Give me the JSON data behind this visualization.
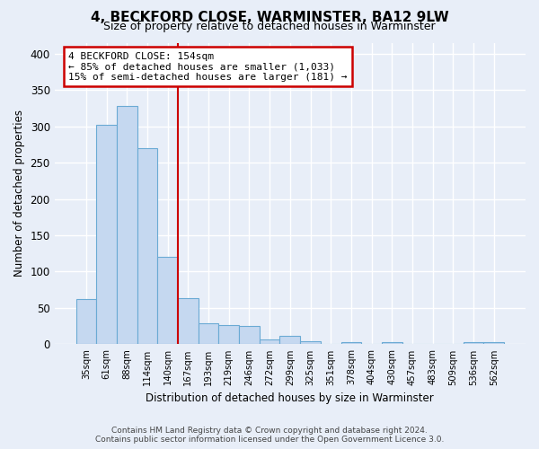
{
  "title": "4, BECKFORD CLOSE, WARMINSTER, BA12 9LW",
  "subtitle": "Size of property relative to detached houses in Warminster",
  "xlabel": "Distribution of detached houses by size in Warminster",
  "ylabel": "Number of detached properties",
  "categories": [
    "35sqm",
    "61sqm",
    "88sqm",
    "114sqm",
    "140sqm",
    "167sqm",
    "193sqm",
    "219sqm",
    "246sqm",
    "272sqm",
    "299sqm",
    "325sqm",
    "351sqm",
    "378sqm",
    "404sqm",
    "430sqm",
    "457sqm",
    "483sqm",
    "509sqm",
    "536sqm",
    "562sqm"
  ],
  "values": [
    62,
    302,
    328,
    270,
    120,
    63,
    29,
    27,
    25,
    7,
    12,
    4,
    0,
    3,
    0,
    3,
    0,
    0,
    0,
    3,
    3
  ],
  "bar_color": "#c5d8f0",
  "bar_edge_color": "#6aaad4",
  "property_line_x": 5,
  "annotation_text_line1": "4 BECKFORD CLOSE: 154sqm",
  "annotation_text_line2": "← 85% of detached houses are smaller (1,033)",
  "annotation_text_line3": "15% of semi-detached houses are larger (181) →",
  "annotation_box_color": "#ffffff",
  "annotation_border_color": "#cc0000",
  "property_line_color": "#cc0000",
  "ylim": [
    0,
    415
  ],
  "yticks": [
    0,
    50,
    100,
    150,
    200,
    250,
    300,
    350,
    400
  ],
  "background_color": "#e8eef8",
  "grid_color": "#ffffff",
  "footer_line1": "Contains HM Land Registry data © Crown copyright and database right 2024.",
  "footer_line2": "Contains public sector information licensed under the Open Government Licence 3.0."
}
